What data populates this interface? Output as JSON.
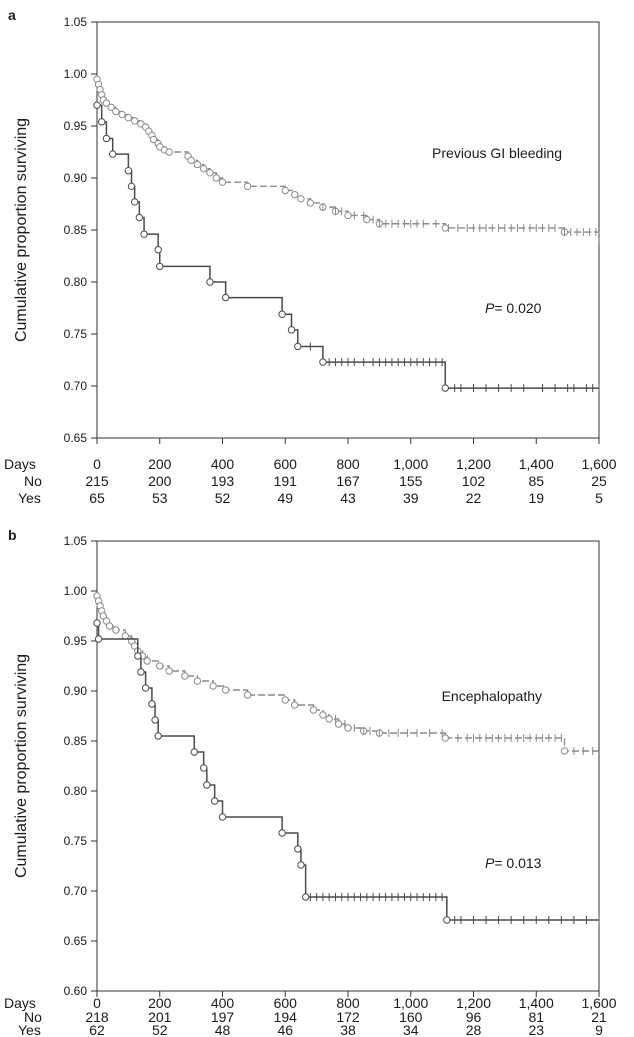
{
  "chart_data": [
    {
      "type": "line",
      "panel_label": "a",
      "ylabel": "Cumulative proportion surviving",
      "ylim": [
        0.65,
        1.05
      ],
      "yticks": [
        "0.65",
        "0.70",
        "0.75",
        "0.80",
        "0.85",
        "0.90",
        "0.95",
        "1.00",
        "1.05"
      ],
      "xlim": [
        0,
        1600
      ],
      "xticks": [
        "0",
        "200",
        "400",
        "600",
        "800",
        "1,000",
        "1,200",
        "1,400",
        "1,600"
      ],
      "annotation": "Previous GI bleeding",
      "p_prefix": "P",
      "p_value": "= 0.020",
      "risk_table": {
        "header": "Days",
        "rows": [
          {
            "label": "No",
            "values": [
              "215",
              "200",
              "193",
              "191",
              "167",
              "155",
              "102",
              "85",
              "25"
            ]
          },
          {
            "label": "Yes",
            "values": [
              "65",
              "53",
              "52",
              "49",
              "43",
              "39",
              "22",
              "19",
              "5"
            ]
          }
        ]
      },
      "series": [
        {
          "group": "No",
          "style": "dashed",
          "x": [
            0,
            5,
            10,
            15,
            20,
            30,
            45,
            60,
            80,
            100,
            120,
            140,
            155,
            165,
            175,
            180,
            195,
            200,
            215,
            230,
            290,
            300,
            320,
            340,
            360,
            380,
            400,
            480,
            600,
            630,
            650,
            680,
            720,
            760,
            800,
            860,
            900,
            1110,
            1490,
            1600
          ],
          "y": [
            0.995,
            0.99,
            0.985,
            0.98,
            0.975,
            0.972,
            0.968,
            0.964,
            0.961,
            0.958,
            0.955,
            0.952,
            0.949,
            0.945,
            0.941,
            0.937,
            0.933,
            0.93,
            0.927,
            0.925,
            0.921,
            0.917,
            0.913,
            0.909,
            0.905,
            0.9,
            0.896,
            0.892,
            0.888,
            0.884,
            0.88,
            0.876,
            0.872,
            0.868,
            0.864,
            0.86,
            0.856,
            0.852,
            0.848,
            0.836
          ],
          "censored": [
            720,
            760,
            780,
            820,
            850,
            880,
            900,
            920,
            940,
            960,
            980,
            1000,
            1020,
            1040,
            1080,
            1120,
            1150,
            1180,
            1200,
            1220,
            1240,
            1260,
            1280,
            1300,
            1320,
            1340,
            1360,
            1380,
            1400,
            1420,
            1440,
            1460,
            1490,
            1510,
            1530,
            1550,
            1570,
            1590
          ]
        },
        {
          "group": "Yes",
          "style": "solid",
          "x": [
            0,
            15,
            30,
            50,
            100,
            110,
            120,
            135,
            150,
            195,
            200,
            360,
            410,
            590,
            620,
            640,
            720,
            1110,
            1600
          ],
          "y": [
            0.97,
            0.954,
            0.938,
            0.923,
            0.907,
            0.892,
            0.877,
            0.862,
            0.846,
            0.831,
            0.815,
            0.8,
            0.785,
            0.769,
            0.754,
            0.738,
            0.723,
            0.698,
            0.698
          ],
          "censored": [
            680,
            740,
            760,
            780,
            800,
            820,
            850,
            880,
            900,
            920,
            940,
            960,
            980,
            1000,
            1020,
            1040,
            1060,
            1080,
            1100,
            1140,
            1160,
            1200,
            1240,
            1280,
            1320,
            1360,
            1420,
            1460,
            1500,
            1520,
            1560,
            1580,
            1600
          ]
        }
      ]
    },
    {
      "type": "line",
      "panel_label": "b",
      "ylabel": "Cumulative proportion surviving",
      "ylim": [
        0.6,
        1.05
      ],
      "yticks": [
        "0.60",
        "0.65",
        "0.70",
        "0.75",
        "0.80",
        "0.85",
        "0.90",
        "0.95",
        "1.00",
        "1.05"
      ],
      "xlim": [
        0,
        1600
      ],
      "xticks": [
        "0",
        "200",
        "400",
        "600",
        "800",
        "1,000",
        "1,200",
        "1,400",
        "1,600"
      ],
      "annotation": "Encephalopathy",
      "p_prefix": "P",
      "p_value": "= 0.013",
      "risk_table": {
        "header": "Days",
        "rows": [
          {
            "label": "No",
            "values": [
              "218",
              "201",
              "197",
              "194",
              "172",
              "160",
              "96",
              "81",
              "21"
            ]
          },
          {
            "label": "Yes",
            "values": [
              "62",
              "52",
              "48",
              "46",
              "38",
              "34",
              "28",
              "23",
              "9"
            ]
          }
        ]
      },
      "series": [
        {
          "group": "No",
          "style": "dashed",
          "x": [
            0,
            5,
            10,
            15,
            20,
            30,
            40,
            60,
            90,
            110,
            120,
            130,
            145,
            160,
            200,
            230,
            280,
            320,
            370,
            410,
            480,
            600,
            630,
            690,
            720,
            740,
            770,
            800,
            850,
            900,
            1110,
            1490,
            1600
          ],
          "y": [
            0.995,
            0.99,
            0.985,
            0.98,
            0.975,
            0.97,
            0.965,
            0.961,
            0.955,
            0.95,
            0.945,
            0.94,
            0.935,
            0.93,
            0.925,
            0.92,
            0.915,
            0.91,
            0.905,
            0.901,
            0.896,
            0.891,
            0.886,
            0.881,
            0.876,
            0.872,
            0.867,
            0.863,
            0.86,
            0.858,
            0.853,
            0.84,
            0.838
          ],
          "censored": [
            760,
            790,
            820,
            850,
            870,
            900,
            930,
            960,
            990,
            1020,
            1060,
            1100,
            1150,
            1180,
            1200,
            1220,
            1240,
            1260,
            1280,
            1300,
            1320,
            1340,
            1360,
            1380,
            1400,
            1420,
            1440,
            1460,
            1480,
            1520,
            1550,
            1580
          ]
        },
        {
          "group": "Yes",
          "style": "solid",
          "x": [
            0,
            5,
            130,
            140,
            155,
            175,
            185,
            195,
            310,
            340,
            350,
            375,
            400,
            590,
            640,
            650,
            665,
            1115,
            1600
          ],
          "y": [
            0.968,
            0.952,
            0.935,
            0.919,
            0.903,
            0.887,
            0.871,
            0.855,
            0.839,
            0.823,
            0.806,
            0.79,
            0.774,
            0.758,
            0.742,
            0.726,
            0.694,
            0.671,
            0.671
          ],
          "censored": [
            680,
            700,
            720,
            740,
            760,
            780,
            800,
            820,
            840,
            860,
            880,
            900,
            920,
            940,
            960,
            980,
            1000,
            1020,
            1040,
            1060,
            1080,
            1100,
            1140,
            1160,
            1200,
            1240,
            1280,
            1320,
            1360,
            1400,
            1440,
            1480,
            1520,
            1560,
            1600
          ]
        }
      ]
    }
  ]
}
